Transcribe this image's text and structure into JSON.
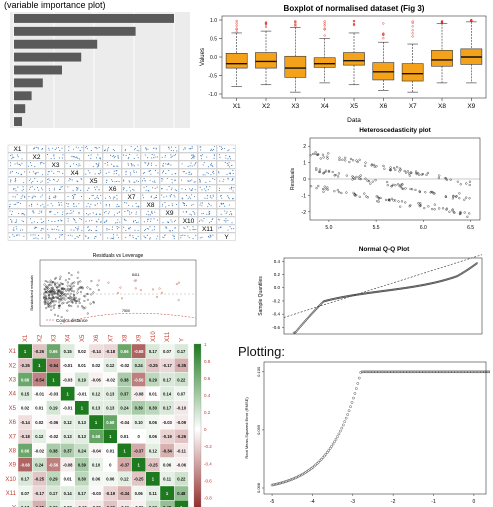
{
  "panels": {
    "importance": {
      "caption": "(variable importance plot)"
    },
    "plotting_heading": "Plotting:"
  },
  "chart_data": [
    {
      "id": "importance",
      "type": "bar",
      "orientation": "horizontal",
      "categories": [
        "",
        "",
        "",
        "",
        "",
        "",
        "",
        "",
        ""
      ],
      "values": [
        100,
        76,
        52,
        42,
        30,
        18,
        11,
        7,
        5
      ],
      "xlim": [
        0,
        100
      ],
      "bar_color": "#5a5a5a",
      "background": "#ececec",
      "grid": true
    },
    {
      "id": "boxplot",
      "type": "box",
      "title": "Boxplot of normalised dataset (Fig 3)",
      "xlabel": "Data",
      "ylabel": "Values",
      "categories": [
        "X1",
        "X2",
        "X3",
        "X4",
        "X5",
        "X6",
        "X7",
        "X8",
        "X9"
      ],
      "ylim": [
        -1.0,
        1.0
      ],
      "yticks": [
        -1.0,
        -0.5,
        0.0,
        0.5,
        1.0
      ],
      "box_color": "#f5a21b",
      "outlier_color": "#d9241b",
      "boxes": [
        {
          "min": -0.8,
          "q1": -0.3,
          "median": -0.18,
          "q3": 0.1,
          "max": 0.65
        },
        {
          "min": -0.75,
          "q1": -0.3,
          "median": -0.12,
          "q3": 0.12,
          "max": 0.7
        },
        {
          "min": -0.95,
          "q1": -0.55,
          "median": -0.3,
          "q3": 0.02,
          "max": 0.8
        },
        {
          "min": -0.7,
          "q1": -0.28,
          "median": -0.18,
          "q3": -0.02,
          "max": 0.5
        },
        {
          "min": -0.75,
          "q1": -0.22,
          "median": -0.1,
          "q3": 0.12,
          "max": 0.65
        },
        {
          "min": -0.9,
          "q1": -0.62,
          "median": -0.4,
          "q3": -0.15,
          "max": 0.4
        },
        {
          "min": -0.95,
          "q1": -0.65,
          "median": -0.45,
          "q3": -0.18,
          "max": 0.35
        },
        {
          "min": -0.7,
          "q1": -0.25,
          "median": -0.08,
          "q3": 0.18,
          "max": 0.9
        },
        {
          "min": -0.7,
          "q1": -0.2,
          "median": 0.0,
          "q3": 0.22,
          "max": 0.95
        }
      ]
    },
    {
      "id": "pairs",
      "type": "scatter_matrix",
      "variables": [
        "X1",
        "X2",
        "X3",
        "X4",
        "X5",
        "X6",
        "X7",
        "X8",
        "X9",
        "X10",
        "X11",
        "Y"
      ],
      "point_color": "#3a78b8"
    },
    {
      "id": "hetero",
      "type": "scatter",
      "title": "Heteroscedasticity plot",
      "ylabel": "Residuals",
      "xlim": [
        4.8,
        6.6
      ],
      "ylim": [
        -2.5,
        2.5
      ],
      "xticks": [
        5.0,
        5.5,
        6.0,
        6.5
      ],
      "yticks": [
        -2,
        -1,
        0,
        1,
        2
      ],
      "bands": [
        {
          "x": [
            4.8,
            6.5
          ],
          "y": [
            1.6,
            -0.3
          ]
        },
        {
          "x": [
            4.8,
            6.5
          ],
          "y": [
            0.6,
            -1.3
          ]
        },
        {
          "x": [
            4.8,
            6.5
          ],
          "y": [
            -0.4,
            -2.2
          ]
        }
      ]
    },
    {
      "id": "leverage",
      "type": "scatter",
      "title": "Residuals vs Leverage",
      "ylabel": "Standardized residuals",
      "legend": "Cook's distance",
      "annotations": [
        "8411",
        "7544",
        "7500"
      ],
      "point_color": "#222222"
    },
    {
      "id": "qq",
      "type": "line",
      "title": "Normal Q-Q Plot",
      "ylabel": "Sample Quantiles",
      "xlim": [
        -4,
        4
      ],
      "ylim": [
        -0.7,
        0.45
      ],
      "yticks": [
        -0.6,
        -0.4,
        -0.2,
        0.0,
        0.2,
        0.4
      ],
      "reference_line": {
        "x": [
          -4,
          4
        ],
        "y": [
          -0.45,
          0.5
        ]
      }
    },
    {
      "id": "corr",
      "type": "heatmap",
      "variables": [
        "X1",
        "X2",
        "X3",
        "X4",
        "X5",
        "X6",
        "X7",
        "X8",
        "X9",
        "X10",
        "X11",
        "Y"
      ],
      "color_low": "#8b1a1a",
      "color_mid": "#ffffff",
      "color_high": "#1e7a1e",
      "colorbar_ticks": [
        "1",
        "0.8",
        "0.6",
        "0.4",
        "0.2",
        "0",
        "-0.2",
        "-0.4",
        "-0.6",
        "-0.8",
        "-1"
      ],
      "matrix": [
        [
          1,
          -0.26,
          0.66,
          0.15,
          0.02,
          -0.14,
          -0.18,
          0.66,
          -0.68,
          0.17,
          0.07,
          0.17
        ],
        [
          -0.26,
          1,
          -0.54,
          -0.01,
          0.01,
          0.02,
          0.12,
          -0.02,
          0.24,
          -0.25,
          -0.17,
          -0.35
        ],
        [
          0.66,
          -0.54,
          1,
          -0.03,
          0.19,
          -0.06,
          -0.02,
          0.38,
          -0.56,
          0.29,
          0.17,
          0.22
        ],
        [
          0.15,
          -0.01,
          -0.03,
          1,
          -0.01,
          0.12,
          0.13,
          0.37,
          -0.08,
          0.01,
          0.14,
          0.07
        ],
        [
          0.02,
          0.01,
          0.19,
          -0.01,
          1,
          0.13,
          0.13,
          0.24,
          0.39,
          0.3,
          0.17,
          -0.1
        ],
        [
          -0.14,
          0.02,
          -0.06,
          0.12,
          0.13,
          1,
          0.68,
          -0.04,
          0.1,
          0.06,
          -0.03,
          -0.09
        ],
        [
          -0.18,
          0.12,
          -0.02,
          0.13,
          0.13,
          0.68,
          1,
          0.01,
          0,
          0.06,
          -0.19,
          -0.26
        ],
        [
          0.66,
          -0.02,
          0.38,
          0.37,
          0.24,
          -0.04,
          0.01,
          1,
          -0.37,
          0.12,
          -0.34,
          -0.11
        ],
        [
          -0.68,
          0.24,
          -0.56,
          -0.08,
          0.39,
          0.1,
          0,
          -0.37,
          1,
          -0.25,
          0.06,
          -0.06
        ],
        [
          0.17,
          -0.25,
          0.29,
          0.01,
          0.3,
          0.06,
          0.06,
          0.12,
          -0.25,
          1,
          0.11,
          0.22
        ],
        [
          0.07,
          -0.17,
          0.17,
          0.14,
          0.17,
          -0.03,
          -0.19,
          -0.34,
          0.06,
          0.11,
          1,
          0.48
        ],
        [
          0.17,
          -0.35,
          0.22,
          0.07,
          -0.1,
          -0.09,
          -0.26,
          -0.11,
          -0.06,
          0.22,
          0.48,
          1
        ]
      ]
    },
    {
      "id": "rmse",
      "type": "scatter",
      "ylabel": "Root Mean-Squared Error (RMSE)",
      "xlim": [
        -5.2,
        0.3
      ],
      "xticks": [
        -5,
        -4,
        -3,
        -2,
        -1,
        0
      ],
      "ylim": [
        0.098,
        0.1001
      ],
      "yticks": [
        0.098,
        0.099,
        0.1
      ]
    }
  ]
}
